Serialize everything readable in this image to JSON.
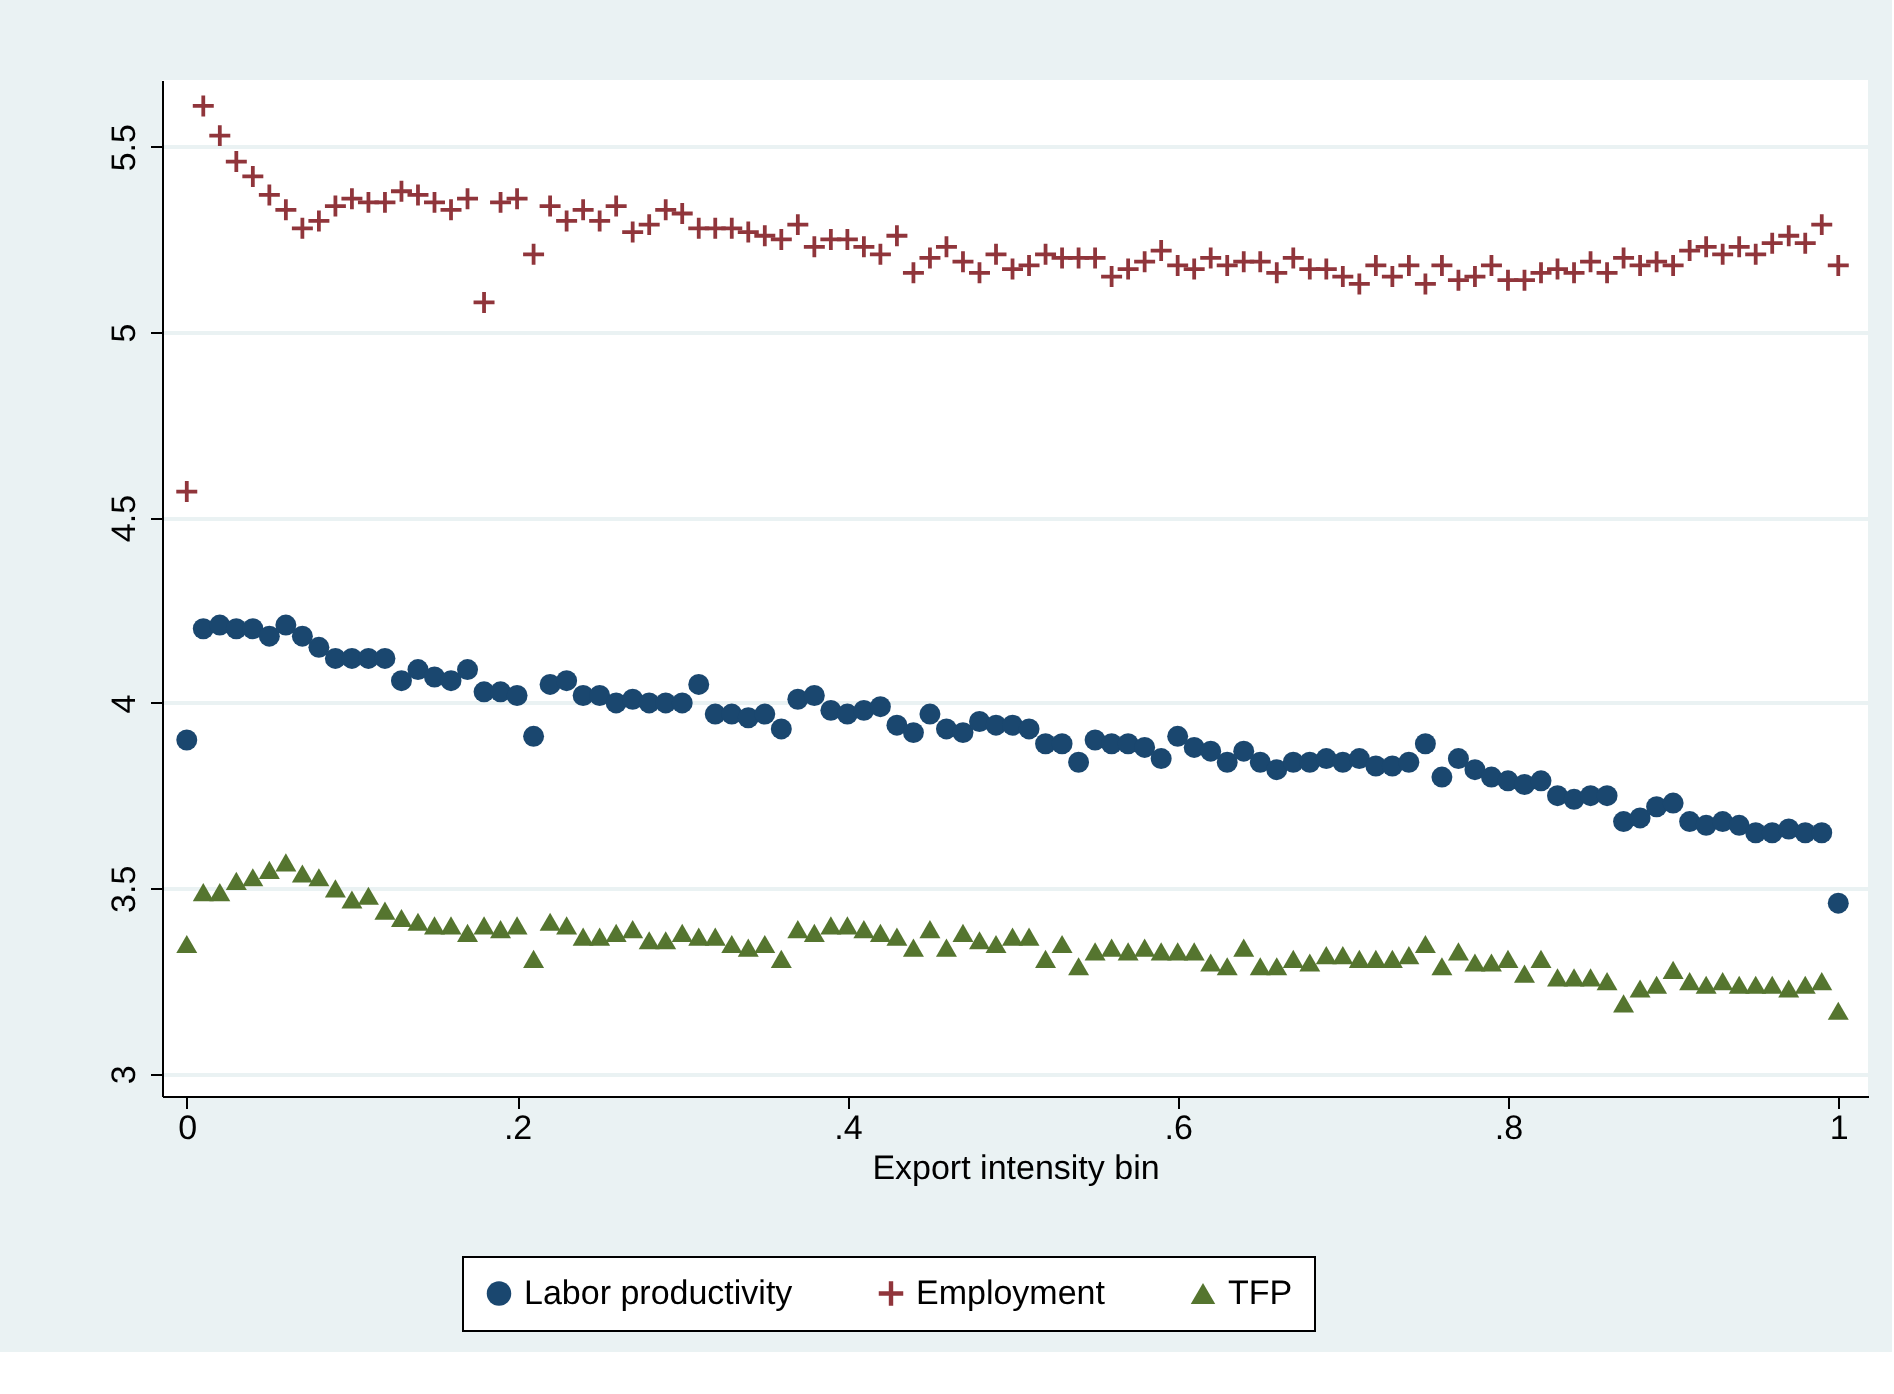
{
  "chart_data": {
    "type": "scatter",
    "xlabel": "Export intensity bin",
    "x": [
      0,
      0.01,
      0.02,
      0.03,
      0.04,
      0.05,
      0.06,
      0.07,
      0.08,
      0.09,
      0.1,
      0.11,
      0.12,
      0.13,
      0.14,
      0.15,
      0.16,
      0.17,
      0.18,
      0.19,
      0.2,
      0.21,
      0.22,
      0.23,
      0.24,
      0.25,
      0.26,
      0.27,
      0.28,
      0.29,
      0.3,
      0.31,
      0.32,
      0.33,
      0.34,
      0.35,
      0.36,
      0.37,
      0.38,
      0.39,
      0.4,
      0.41,
      0.42,
      0.43,
      0.44,
      0.45,
      0.46,
      0.47,
      0.48,
      0.49,
      0.5,
      0.51,
      0.52,
      0.53,
      0.54,
      0.55,
      0.56,
      0.57,
      0.58,
      0.59,
      0.6,
      0.61,
      0.62,
      0.63,
      0.64,
      0.65,
      0.66,
      0.67,
      0.68,
      0.69,
      0.7,
      0.71,
      0.72,
      0.73,
      0.74,
      0.75,
      0.76,
      0.77,
      0.78,
      0.79,
      0.8,
      0.81,
      0.82,
      0.83,
      0.84,
      0.85,
      0.86,
      0.87,
      0.88,
      0.89,
      0.9,
      0.91,
      0.92,
      0.93,
      0.94,
      0.95,
      0.96,
      0.97,
      0.98,
      0.99,
      1
    ],
    "series": [
      {
        "name": "Labor productivity",
        "color": "#1a476f",
        "marker": "circle",
        "values": [
          3.9,
          4.2,
          4.21,
          4.2,
          4.2,
          4.18,
          4.21,
          4.18,
          4.15,
          4.12,
          4.12,
          4.12,
          4.12,
          4.06,
          4.09,
          4.07,
          4.06,
          4.09,
          4.03,
          4.03,
          4.02,
          3.91,
          4.05,
          4.06,
          4.02,
          4.02,
          4.0,
          4.01,
          4.0,
          4.0,
          4.0,
          4.05,
          3.97,
          3.97,
          3.96,
          3.97,
          3.93,
          4.01,
          4.02,
          3.98,
          3.97,
          3.98,
          3.99,
          3.94,
          3.92,
          3.97,
          3.93,
          3.92,
          3.95,
          3.94,
          3.94,
          3.93,
          3.89,
          3.89,
          3.84,
          3.9,
          3.89,
          3.89,
          3.88,
          3.85,
          3.91,
          3.88,
          3.87,
          3.84,
          3.87,
          3.84,
          3.82,
          3.84,
          3.84,
          3.85,
          3.84,
          3.85,
          3.83,
          3.83,
          3.84,
          3.89,
          3.8,
          3.85,
          3.82,
          3.8,
          3.79,
          3.78,
          3.79,
          3.75,
          3.74,
          3.75,
          3.75,
          3.68,
          3.69,
          3.72,
          3.73,
          3.68,
          3.67,
          3.68,
          3.67,
          3.65,
          3.65,
          3.66,
          3.65,
          3.65,
          3.46
        ]
      },
      {
        "name": "Employment",
        "color": "#90353b",
        "marker": "cross",
        "values": [
          4.57,
          5.61,
          5.53,
          5.46,
          5.42,
          5.37,
          5.33,
          5.28,
          5.3,
          5.34,
          5.36,
          5.35,
          5.35,
          5.38,
          5.37,
          5.35,
          5.33,
          5.36,
          5.08,
          5.35,
          5.36,
          5.21,
          5.34,
          5.3,
          5.33,
          5.3,
          5.34,
          5.27,
          5.29,
          5.33,
          5.32,
          5.28,
          5.28,
          5.28,
          5.27,
          5.26,
          5.25,
          5.29,
          5.23,
          5.25,
          5.25,
          5.23,
          5.21,
          5.26,
          5.16,
          5.2,
          5.23,
          5.19,
          5.16,
          5.21,
          5.17,
          5.18,
          5.21,
          5.2,
          5.2,
          5.2,
          5.15,
          5.17,
          5.19,
          5.22,
          5.18,
          5.17,
          5.2,
          5.18,
          5.19,
          5.19,
          5.16,
          5.2,
          5.17,
          5.17,
          5.15,
          5.13,
          5.18,
          5.15,
          5.18,
          5.13,
          5.18,
          5.14,
          5.15,
          5.18,
          5.14,
          5.14,
          5.16,
          5.17,
          5.16,
          5.19,
          5.16,
          5.2,
          5.18,
          5.19,
          5.18,
          5.22,
          5.23,
          5.21,
          5.23,
          5.21,
          5.24,
          5.26,
          5.24,
          5.29,
          5.18
        ]
      },
      {
        "name": "TFP",
        "color": "#55752f",
        "marker": "triangle",
        "values": [
          3.35,
          3.49,
          3.49,
          3.52,
          3.53,
          3.55,
          3.57,
          3.54,
          3.53,
          3.5,
          3.47,
          3.48,
          3.44,
          3.42,
          3.41,
          3.4,
          3.4,
          3.38,
          3.4,
          3.39,
          3.4,
          3.31,
          3.41,
          3.4,
          3.37,
          3.37,
          3.38,
          3.39,
          3.36,
          3.36,
          3.38,
          3.37,
          3.37,
          3.35,
          3.34,
          3.35,
          3.31,
          3.39,
          3.38,
          3.4,
          3.4,
          3.39,
          3.38,
          3.37,
          3.34,
          3.39,
          3.34,
          3.38,
          3.36,
          3.35,
          3.37,
          3.37,
          3.31,
          3.35,
          3.29,
          3.33,
          3.34,
          3.33,
          3.34,
          3.33,
          3.33,
          3.33,
          3.3,
          3.29,
          3.34,
          3.29,
          3.29,
          3.31,
          3.3,
          3.32,
          3.32,
          3.31,
          3.31,
          3.31,
          3.32,
          3.35,
          3.29,
          3.33,
          3.3,
          3.3,
          3.31,
          3.27,
          3.31,
          3.26,
          3.26,
          3.26,
          3.25,
          3.19,
          3.23,
          3.24,
          3.28,
          3.25,
          3.24,
          3.25,
          3.24,
          3.24,
          3.24,
          3.23,
          3.24,
          3.25,
          3.17
        ]
      }
    ],
    "xlim": [
      -0.015,
      1.018
    ],
    "xticks": [
      0,
      {
        "value": 0.2,
        "label": ".2"
      },
      {
        "value": 0.4,
        "label": ".4"
      },
      {
        "value": 0.6,
        "label": ".6"
      },
      {
        "value": 0.8,
        "label": ".8"
      },
      1
    ],
    "ylim": [
      2.94,
      5.68
    ],
    "yticks": [
      3,
      3.5,
      4,
      4.5,
      5,
      5.5
    ],
    "grid": "y",
    "legend": "bottom"
  }
}
